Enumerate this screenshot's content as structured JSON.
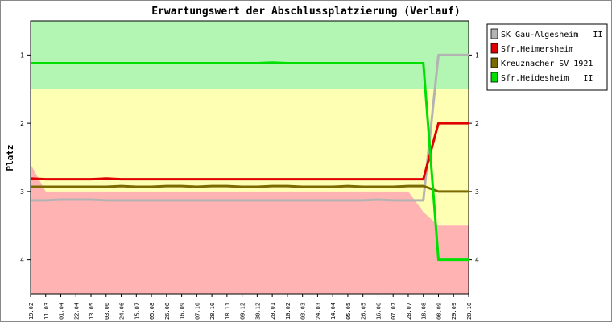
{
  "chart_data": {
    "type": "line",
    "title": "Erwartungswert der Abschlussplatzierung (Verlauf)",
    "ylabel": "Platz",
    "xlabel": "",
    "ylim": [
      0.5,
      4.5
    ],
    "y_inverted": true,
    "yticks": [
      1,
      2,
      3,
      4
    ],
    "legend_position": "right",
    "categories": [
      "19.02",
      "11.03",
      "01.04",
      "22.04",
      "13.05",
      "03.06",
      "24.06",
      "15.07",
      "05.08",
      "26.08",
      "16.09",
      "07.10",
      "28.10",
      "18.11",
      "09.12",
      "30.12",
      "20.01",
      "10.02",
      "03.03",
      "24.03",
      "14.04",
      "05.05",
      "26.05",
      "16.06",
      "07.07",
      "28.07",
      "18.08",
      "08.09",
      "29.09",
      "20.10"
    ],
    "zones": [
      {
        "name": "green",
        "color": "#b3f5b3",
        "upper": [
          1.5,
          1.5,
          1.5,
          1.5,
          1.5,
          1.5,
          1.5,
          1.5,
          1.5,
          1.5,
          1.5,
          1.5,
          1.5,
          1.5,
          1.5,
          1.5,
          1.5,
          1.5,
          1.5,
          1.5,
          1.5,
          1.5,
          1.5,
          1.5,
          1.5,
          1.5,
          1.5,
          1.5,
          1.5,
          1.5
        ]
      },
      {
        "name": "yellow",
        "color": "#ffffb3",
        "upper": [
          2.6,
          3.0,
          3.0,
          3.0,
          3.0,
          3.0,
          3.0,
          3.0,
          3.0,
          3.0,
          3.0,
          3.0,
          3.0,
          3.0,
          3.0,
          3.0,
          3.0,
          3.0,
          3.0,
          3.0,
          3.0,
          3.0,
          3.0,
          3.0,
          3.0,
          3.0,
          3.3,
          3.5,
          3.5,
          3.5
        ]
      },
      {
        "name": "red",
        "color": "#ffb3b3"
      }
    ],
    "series": [
      {
        "name": "SK Gau-Algesheim   II",
        "color": "#b3b3b3",
        "values": [
          3.13,
          3.13,
          3.12,
          3.12,
          3.12,
          3.13,
          3.13,
          3.13,
          3.13,
          3.13,
          3.13,
          3.13,
          3.13,
          3.13,
          3.13,
          3.13,
          3.13,
          3.13,
          3.13,
          3.13,
          3.13,
          3.13,
          3.13,
          3.12,
          3.13,
          3.13,
          3.13,
          1.0,
          1.0,
          1.0
        ]
      },
      {
        "name": "Sfr.Heimersheim",
        "color": "#e00000",
        "values": [
          2.81,
          2.82,
          2.82,
          2.82,
          2.82,
          2.81,
          2.82,
          2.82,
          2.82,
          2.82,
          2.82,
          2.82,
          2.82,
          2.82,
          2.82,
          2.82,
          2.82,
          2.82,
          2.82,
          2.82,
          2.82,
          2.82,
          2.82,
          2.82,
          2.82,
          2.82,
          2.82,
          2.0,
          2.0,
          2.0
        ]
      },
      {
        "name": "Kreuznacher SV 1921",
        "color": "#7a6a00",
        "values": [
          2.93,
          2.93,
          2.93,
          2.93,
          2.93,
          2.93,
          2.92,
          2.93,
          2.93,
          2.92,
          2.92,
          2.93,
          2.92,
          2.92,
          2.93,
          2.93,
          2.92,
          2.92,
          2.93,
          2.93,
          2.93,
          2.92,
          2.93,
          2.93,
          2.93,
          2.92,
          2.92,
          3.0,
          3.0,
          3.0
        ]
      },
      {
        "name": "Sfr.Heidesheim   II",
        "color": "#00e000",
        "values": [
          1.12,
          1.12,
          1.12,
          1.12,
          1.12,
          1.12,
          1.12,
          1.12,
          1.12,
          1.12,
          1.12,
          1.12,
          1.12,
          1.12,
          1.12,
          1.12,
          1.11,
          1.12,
          1.12,
          1.12,
          1.12,
          1.12,
          1.12,
          1.12,
          1.12,
          1.12,
          1.12,
          4.0,
          4.0,
          4.0
        ]
      }
    ]
  }
}
